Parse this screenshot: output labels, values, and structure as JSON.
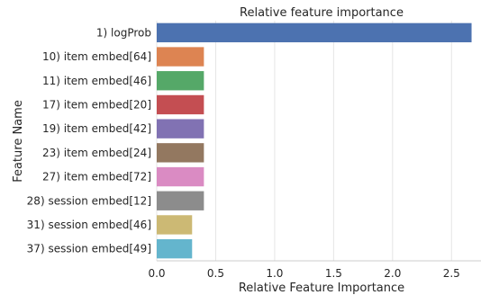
{
  "chart_data": {
    "type": "bar",
    "orientation": "horizontal",
    "title": "Relative feature importance",
    "xlabel": "Relative Feature Importance",
    "ylabel": "Feature Name",
    "xlim": [
      0,
      2.75
    ],
    "xticks": [
      0.0,
      0.5,
      1.0,
      1.5,
      2.0,
      2.5
    ],
    "xtick_labels": [
      "0.0",
      "0.5",
      "1.0",
      "1.5",
      "2.0",
      "2.5"
    ],
    "grid": "vertical",
    "categories": [
      "1) logProb",
      "10) item embed[64]",
      "11) item embed[46]",
      "17) item embed[20]",
      "19) item embed[42]",
      "23) item embed[24]",
      "27) item embed[72]",
      "28) session embed[12]",
      "31) session embed[46]",
      "37) session embed[49]"
    ],
    "values": [
      2.67,
      0.4,
      0.4,
      0.4,
      0.4,
      0.4,
      0.4,
      0.4,
      0.3,
      0.3
    ],
    "colors": [
      "#4c72b0",
      "#dd8452",
      "#55a868",
      "#c44e52",
      "#8172b3",
      "#937860",
      "#da8bc3",
      "#8c8c8c",
      "#ccb974",
      "#64b5cd"
    ]
  }
}
